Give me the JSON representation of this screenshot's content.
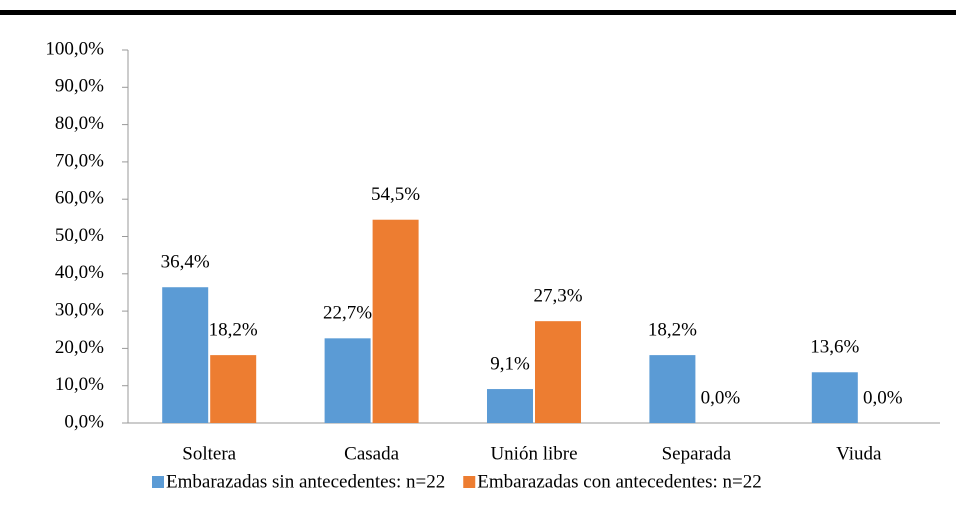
{
  "chart_data": {
    "type": "bar",
    "categories": [
      "Soltera",
      "Casada",
      "Unión libre",
      "Separada",
      "Viuda"
    ],
    "series": [
      {
        "name": "Embarazadas sin antecedentes: n=22",
        "color": "#5b9bd5",
        "values": [
          36.4,
          22.7,
          9.1,
          18.2,
          13.6
        ],
        "value_labels": [
          "36,4%",
          "22,7%",
          "9,1%",
          "18,2%",
          "13,6%"
        ]
      },
      {
        "name": "Embarazadas con antecedentes: n=22",
        "color": "#ed7d31",
        "values": [
          18.2,
          54.5,
          27.3,
          0,
          0
        ],
        "value_labels": [
          "18,2%",
          "54,5%",
          "27,3%",
          "0,0%",
          "0,0%"
        ]
      }
    ],
    "ylim": [
      0,
      100
    ],
    "yticks": [
      {
        "value": 0,
        "label": "0,0%"
      },
      {
        "value": 10,
        "label": "10,0%"
      },
      {
        "value": 20,
        "label": "20,0%"
      },
      {
        "value": 30,
        "label": "30,0%"
      },
      {
        "value": 40,
        "label": "40,0%"
      },
      {
        "value": 50,
        "label": "50,0%"
      },
      {
        "value": 60,
        "label": "60,0%"
      },
      {
        "value": 70,
        "label": "70,0%"
      },
      {
        "value": 80,
        "label": "80,0%"
      },
      {
        "value": 90,
        "label": "90,0%"
      },
      {
        "value": 100,
        "label": "100,0%"
      }
    ],
    "legend": "bottom"
  }
}
